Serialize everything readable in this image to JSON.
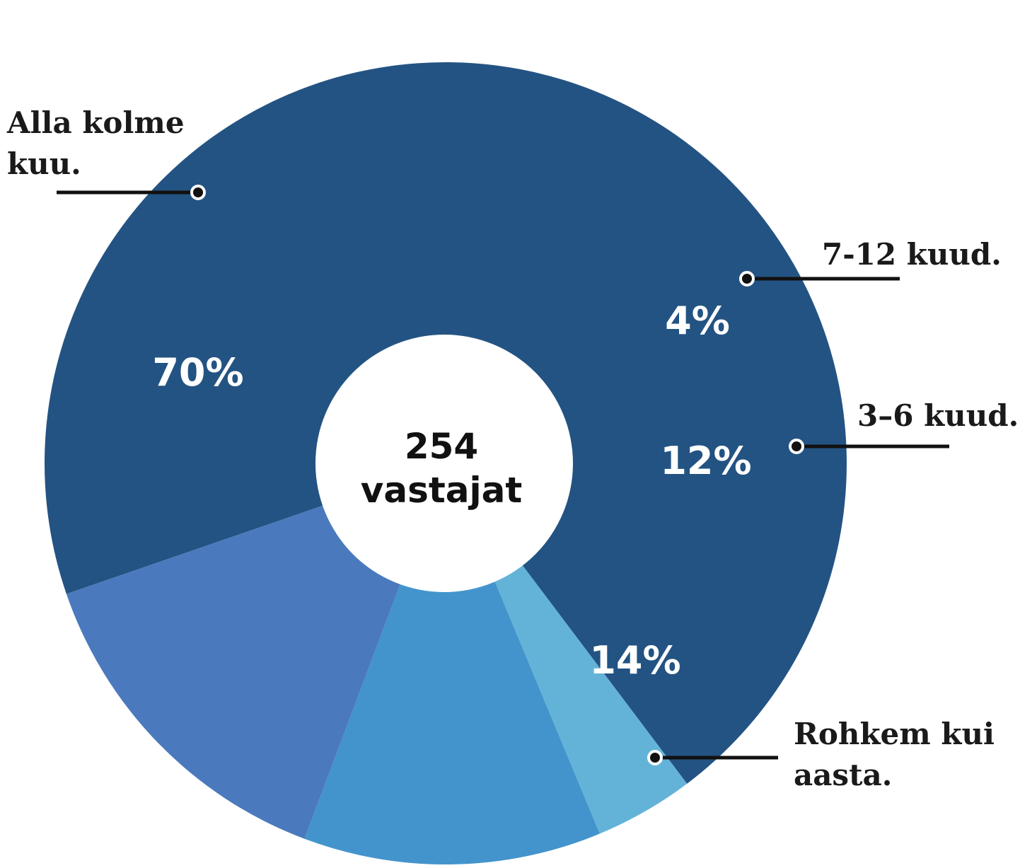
{
  "chart_data": {
    "type": "pie",
    "center_label": [
      "254",
      "vastajat"
    ],
    "slices": [
      {
        "label": [
          "Alla kolme",
          "kuu."
        ],
        "value": 70,
        "value_label": "70%",
        "color": "#235382"
      },
      {
        "label": [
          "7-12 kuud."
        ],
        "value": 4,
        "value_label": "4%",
        "color": "#63b3d8"
      },
      {
        "label": [
          "3–6 kuud."
        ],
        "value": 12,
        "value_label": "12%",
        "color": "#4394cc"
      },
      {
        "label": [
          "Rohkem kui",
          "aasta."
        ],
        "value": 14,
        "value_label": "14%",
        "color": "#4a7abd"
      }
    ],
    "legend": "callouts"
  }
}
